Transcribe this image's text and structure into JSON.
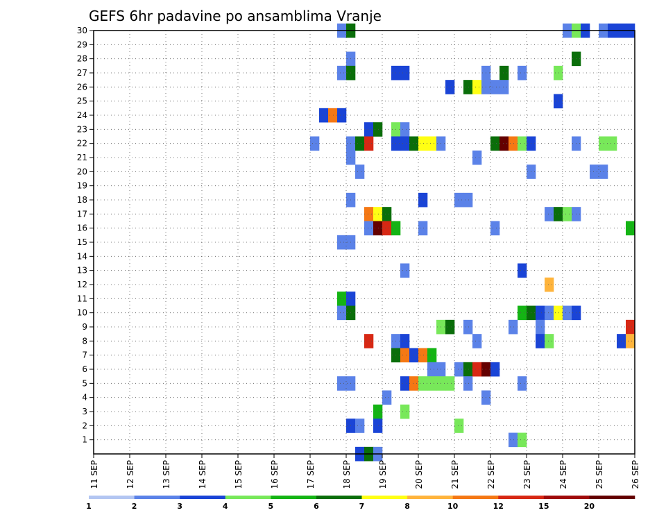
{
  "chart_data": {
    "type": "heatmap",
    "title": "GEFS 6hr padavine po ansamblima Vranje",
    "xlabel": "",
    "ylabel": "",
    "x_ticks": [
      "11 SEP",
      "12 SEP",
      "13 SEP",
      "14 SEP",
      "15 SEP",
      "16 SEP",
      "17 SEP",
      "18 SEP",
      "19 SEP",
      "20 SEP",
      "21 SEP",
      "22 SEP",
      "23 SEP",
      "24 SEP",
      "25 SEP",
      "26 SEP"
    ],
    "y_ticks": [
      "1",
      "2",
      "3",
      "4",
      "5",
      "6",
      "7",
      "8",
      "9",
      "10",
      "11",
      "12",
      "13",
      "14",
      "15",
      "16",
      "17",
      "18",
      "19",
      "20",
      "21",
      "22",
      "23",
      "24",
      "25",
      "26",
      "27",
      "28",
      "29",
      "30"
    ],
    "xlim": [
      0,
      60
    ],
    "ylim": [
      0,
      30
    ],
    "grid": true,
    "legend": {
      "labels": [
        "1",
        "2",
        "3",
        "4",
        "5",
        "6",
        "7",
        "8",
        "10",
        "12",
        "15",
        "20"
      ],
      "colors": [
        "#b3c6f2",
        "#5b82e8",
        "#1a44d6",
        "#78e85a",
        "#14b414",
        "#0a6e0a",
        "#ffff14",
        "#ffb43c",
        "#f57814",
        "#d72814",
        "#a00a0a",
        "#640000"
      ]
    },
    "cells": [
      [
        27,
        30,
        1
      ],
      [
        28,
        30,
        5
      ],
      [
        52,
        30,
        1
      ],
      [
        53,
        30,
        3
      ],
      [
        54,
        30,
        2
      ],
      [
        56,
        30,
        1
      ],
      [
        57,
        30,
        2
      ],
      [
        58,
        30,
        2
      ],
      [
        59,
        30,
        2
      ],
      [
        28,
        28,
        1
      ],
      [
        53,
        28,
        5
      ],
      [
        27,
        27,
        1
      ],
      [
        28,
        27,
        5
      ],
      [
        33,
        27,
        2
      ],
      [
        34,
        27,
        2
      ],
      [
        43,
        27,
        1
      ],
      [
        45,
        27,
        5
      ],
      [
        47,
        27,
        1
      ],
      [
        51,
        27,
        3
      ],
      [
        39,
        26,
        2
      ],
      [
        41,
        26,
        5
      ],
      [
        42,
        26,
        6
      ],
      [
        43,
        26,
        1
      ],
      [
        44,
        26,
        1
      ],
      [
        45,
        26,
        1
      ],
      [
        51,
        25,
        2
      ],
      [
        25,
        24,
        2
      ],
      [
        26,
        24,
        8
      ],
      [
        27,
        24,
        2
      ],
      [
        30,
        23,
        2
      ],
      [
        31,
        23,
        5
      ],
      [
        33,
        23,
        3
      ],
      [
        34,
        23,
        1
      ],
      [
        24,
        22,
        1
      ],
      [
        28,
        22,
        1
      ],
      [
        29,
        22,
        5
      ],
      [
        30,
        22,
        9
      ],
      [
        33,
        22,
        2
      ],
      [
        34,
        22,
        2
      ],
      [
        35,
        22,
        5
      ],
      [
        36,
        22,
        6
      ],
      [
        37,
        22,
        6
      ],
      [
        38,
        22,
        1
      ],
      [
        44,
        22,
        5
      ],
      [
        45,
        22,
        11
      ],
      [
        46,
        22,
        8
      ],
      [
        47,
        22,
        3
      ],
      [
        48,
        22,
        2
      ],
      [
        53,
        22,
        1
      ],
      [
        56,
        22,
        3
      ],
      [
        57,
        22,
        3
      ],
      [
        28,
        21,
        1
      ],
      [
        42,
        21,
        1
      ],
      [
        29,
        20,
        1
      ],
      [
        48,
        20,
        1
      ],
      [
        55,
        20,
        1
      ],
      [
        56,
        20,
        1
      ],
      [
        28,
        18,
        1
      ],
      [
        36,
        18,
        2
      ],
      [
        40,
        18,
        1
      ],
      [
        41,
        18,
        1
      ],
      [
        30,
        17,
        8
      ],
      [
        31,
        17,
        6
      ],
      [
        32,
        17,
        5
      ],
      [
        50,
        17,
        1
      ],
      [
        51,
        17,
        5
      ],
      [
        52,
        17,
        3
      ],
      [
        53,
        17,
        1
      ],
      [
        30,
        16,
        1
      ],
      [
        31,
        16,
        11
      ],
      [
        32,
        16,
        9
      ],
      [
        33,
        16,
        4
      ],
      [
        36,
        16,
        1
      ],
      [
        44,
        16,
        1
      ],
      [
        59,
        16,
        4
      ],
      [
        27,
        15,
        1
      ],
      [
        28,
        15,
        1
      ],
      [
        34,
        13,
        1
      ],
      [
        47,
        13,
        2
      ],
      [
        50,
        12,
        7
      ],
      [
        27,
        11,
        4
      ],
      [
        28,
        11,
        2
      ],
      [
        27,
        10,
        1
      ],
      [
        28,
        10,
        5
      ],
      [
        47,
        10,
        4
      ],
      [
        48,
        10,
        5
      ],
      [
        49,
        10,
        2
      ],
      [
        50,
        10,
        1
      ],
      [
        51,
        10,
        6
      ],
      [
        52,
        10,
        1
      ],
      [
        53,
        10,
        2
      ],
      [
        38,
        9,
        3
      ],
      [
        39,
        9,
        5
      ],
      [
        41,
        9,
        1
      ],
      [
        46,
        9,
        1
      ],
      [
        49,
        9,
        1
      ],
      [
        59,
        9,
        9
      ],
      [
        30,
        8,
        9
      ],
      [
        33,
        8,
        1
      ],
      [
        34,
        8,
        2
      ],
      [
        42,
        8,
        1
      ],
      [
        49,
        8,
        2
      ],
      [
        50,
        8,
        3
      ],
      [
        58,
        8,
        2
      ],
      [
        59,
        8,
        7
      ],
      [
        33,
        7,
        5
      ],
      [
        34,
        7,
        8
      ],
      [
        35,
        7,
        2
      ],
      [
        36,
        7,
        8
      ],
      [
        37,
        7,
        4
      ],
      [
        37,
        6,
        1
      ],
      [
        38,
        6,
        1
      ],
      [
        40,
        6,
        1
      ],
      [
        41,
        6,
        5
      ],
      [
        42,
        6,
        9
      ],
      [
        43,
        6,
        11
      ],
      [
        44,
        6,
        2
      ],
      [
        27,
        5,
        1
      ],
      [
        28,
        5,
        1
      ],
      [
        34,
        5,
        2
      ],
      [
        35,
        5,
        8
      ],
      [
        36,
        5,
        3
      ],
      [
        37,
        5,
        3
      ],
      [
        38,
        5,
        3
      ],
      [
        39,
        5,
        3
      ],
      [
        41,
        5,
        1
      ],
      [
        47,
        5,
        1
      ],
      [
        32,
        4,
        1
      ],
      [
        43,
        4,
        1
      ],
      [
        31,
        3,
        4
      ],
      [
        34,
        3,
        3
      ],
      [
        28,
        2,
        2
      ],
      [
        29,
        2,
        1
      ],
      [
        31,
        2,
        2
      ],
      [
        40,
        2,
        3
      ],
      [
        46,
        1,
        1
      ],
      [
        47,
        1,
        3
      ],
      [
        29,
        0,
        2
      ],
      [
        30,
        0,
        5
      ],
      [
        31,
        0,
        1
      ]
    ]
  }
}
